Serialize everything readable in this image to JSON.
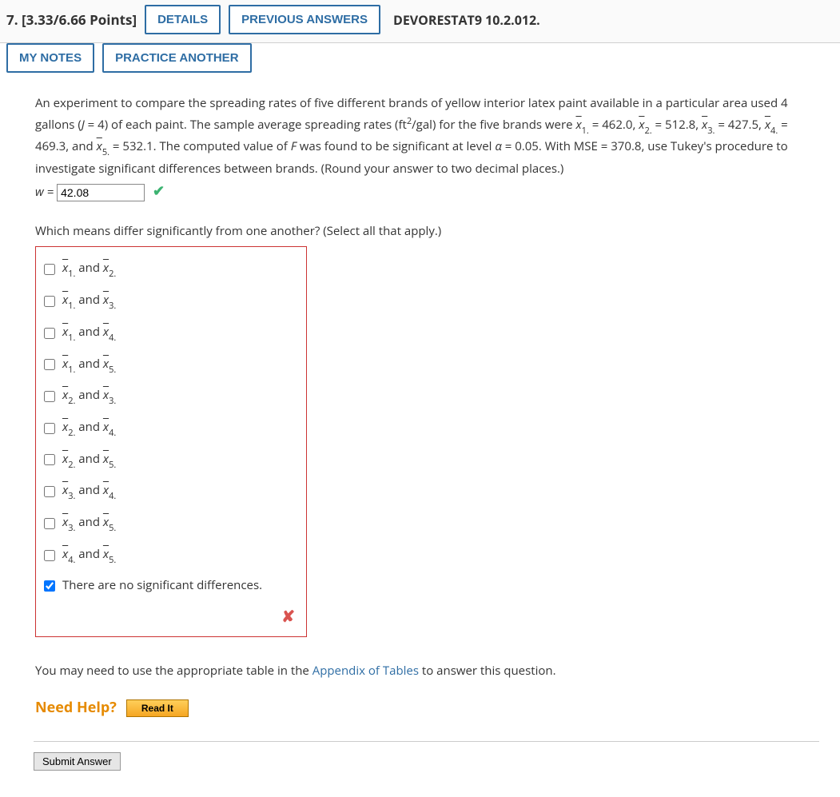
{
  "header": {
    "qnum_points": "7. [3.33/6.66 Points]",
    "details": "DETAILS",
    "previous": "PREVIOUS ANSWERS",
    "source": "DEVORESTAT9 10.2.012.",
    "mynotes": "MY NOTES",
    "practice": "PRACTICE ANOTHER"
  },
  "prompt": {
    "p1a": "An experiment to compare the spreading rates of five different brands of yellow interior latex paint available in a particular area used 4 gallons (",
    "J": "J",
    "eq4": " = 4) of each paint. The sample average spreading rates (ft",
    "sup2": "2",
    "gal": "/gal) for the five brands were ",
    "x1v": " = 462.0, ",
    "x2v": " = 512.8, ",
    "x3v": " = 427.5, ",
    "x4v": " = 469.3, and ",
    "x5v": " = 532.1. The computed value of ",
    "F": "F",
    "p1b": " was found to be significant at level ",
    "alpha": "α",
    "alphaval": " = 0.05. With MSE = 370.8, use Tukey's procedure to investigate significant differences between brands. (Round your answer to two decimal places.)",
    "wlabel": "w = ",
    "wval": "42.08"
  },
  "q2": {
    "question": "Which means differ significantly from one another? (Select all that apply.)",
    "and": " and ",
    "none": "There are no significant differences."
  },
  "footer": {
    "note_a": "You may need to use the appropriate table in the ",
    "note_link": "Appendix of Tables",
    "note_b": " to answer this question.",
    "needhelp": "Need Help?",
    "readit": "Read It",
    "submit": "Submit Answer"
  },
  "pairs": [
    [
      "1",
      "2"
    ],
    [
      "1",
      "3"
    ],
    [
      "1",
      "4"
    ],
    [
      "1",
      "5"
    ],
    [
      "2",
      "3"
    ],
    [
      "2",
      "4"
    ],
    [
      "2",
      "5"
    ],
    [
      "3",
      "4"
    ],
    [
      "3",
      "5"
    ],
    [
      "4",
      "5"
    ]
  ],
  "colors": {
    "accent": "#2e6da4",
    "error_border": "#cc3333",
    "check": "#3cb371",
    "wrong": "#d9534f",
    "help": "#e68a00"
  }
}
